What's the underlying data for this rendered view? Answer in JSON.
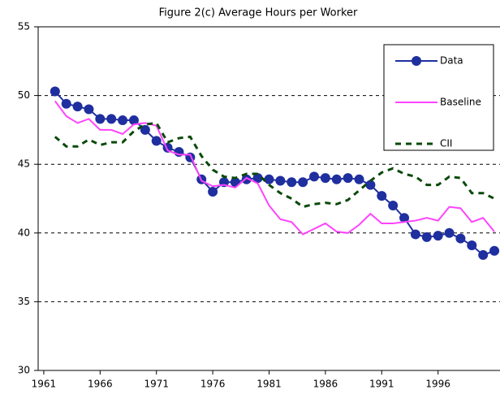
{
  "chart_data": {
    "type": "line",
    "title": "Figure 2(c) Average Hours per Worker",
    "x": [
      1962,
      1963,
      1964,
      1965,
      1966,
      1967,
      1968,
      1969,
      1970,
      1971,
      1972,
      1973,
      1974,
      1975,
      1976,
      1977,
      1978,
      1979,
      1980,
      1981,
      1982,
      1983,
      1984,
      1985,
      1986,
      1987,
      1988,
      1989,
      1990,
      1991,
      1992,
      1993,
      1994,
      1995,
      1996,
      1997,
      1998,
      1999,
      2000,
      2001
    ],
    "series": [
      {
        "name": "Data",
        "color": "#1f2f9f",
        "style": "solid-marker",
        "values": [
          50.3,
          49.4,
          49.2,
          49.0,
          48.3,
          48.3,
          48.2,
          48.2,
          47.5,
          46.7,
          46.2,
          45.9,
          45.5,
          43.9,
          43.0,
          43.7,
          43.7,
          43.9,
          44.0,
          43.9,
          43.8,
          43.7,
          43.7,
          44.1,
          44.0,
          43.9,
          44.0,
          43.9,
          43.5,
          42.7,
          42.0,
          41.1,
          39.9,
          39.7,
          39.8,
          40.0,
          39.6,
          39.1,
          38.4,
          38.7
        ]
      },
      {
        "name": "Baseline",
        "color": "#ff44ff",
        "style": "solid",
        "values": [
          49.6,
          48.5,
          48.0,
          48.3,
          47.5,
          47.5,
          47.2,
          47.9,
          48.0,
          47.8,
          46.0,
          45.7,
          45.7,
          43.8,
          43.4,
          43.5,
          43.3,
          44.0,
          43.6,
          42.0,
          41.0,
          40.8,
          39.9,
          40.3,
          40.7,
          40.1,
          40.0,
          40.6,
          41.4,
          40.7,
          40.7,
          40.8,
          40.9,
          41.1,
          40.9,
          41.9,
          41.8,
          40.8,
          41.1,
          40.1
        ]
      },
      {
        "name": "CII",
        "color": "#0a4a0a",
        "style": "dashed",
        "values": [
          47.0,
          46.3,
          46.3,
          46.8,
          46.4,
          46.6,
          46.6,
          47.4,
          47.9,
          48.0,
          46.6,
          46.9,
          47.0,
          45.6,
          44.6,
          44.1,
          44.0,
          44.3,
          44.3,
          43.5,
          42.9,
          42.5,
          41.9,
          42.1,
          42.2,
          42.1,
          42.4,
          43.1,
          43.8,
          44.4,
          44.7,
          44.3,
          44.1,
          43.5,
          43.5,
          44.1,
          44.0,
          42.9,
          42.9,
          42.5
        ]
      }
    ],
    "xlim": [
      1960.5,
      2001.5
    ],
    "xticks": [
      1961,
      1966,
      1971,
      1976,
      1981,
      1986,
      1991,
      1996
    ],
    "ylim": [
      30,
      55
    ],
    "yticks": [
      30,
      35,
      40,
      45,
      50,
      55
    ],
    "grid": true,
    "legend": "top-right"
  }
}
